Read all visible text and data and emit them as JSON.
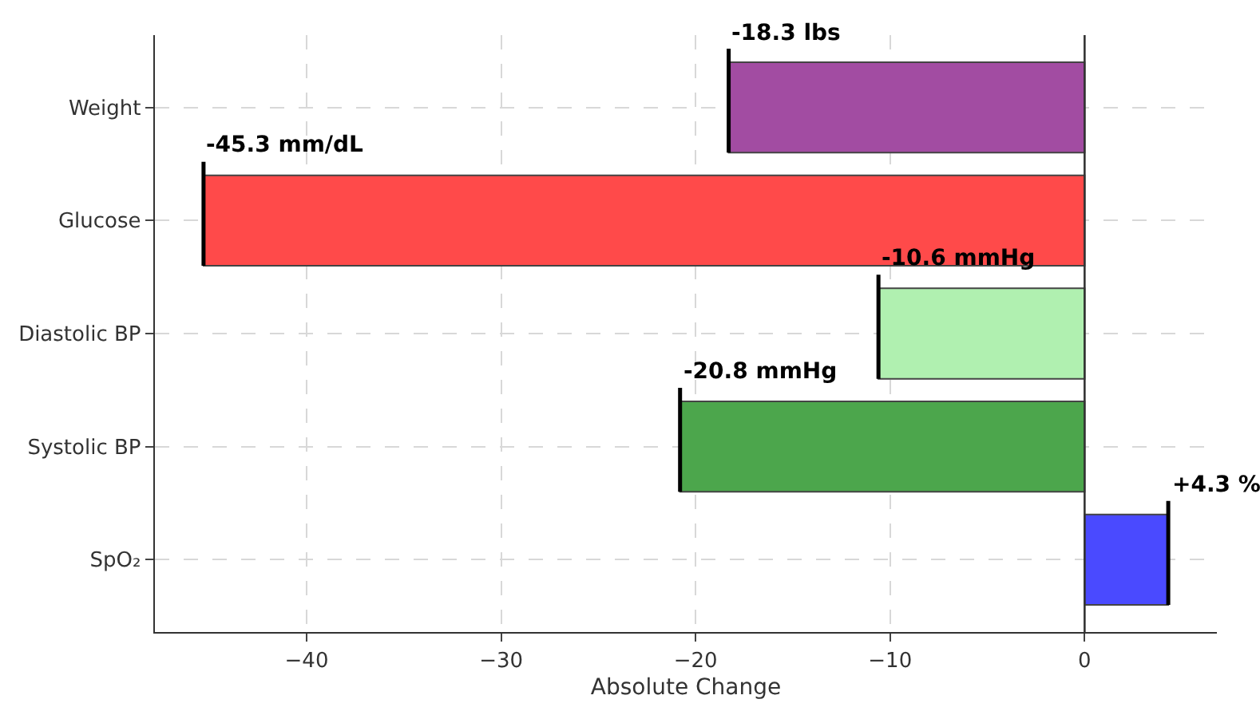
{
  "chart_data": {
    "type": "bar",
    "orientation": "horizontal",
    "xlabel": "Absolute Change",
    "categories": [
      "Weight",
      "Glucose",
      "Diastolic BP",
      "Systolic BP",
      "SpO₂"
    ],
    "values": [
      -18.3,
      -45.3,
      -10.6,
      -20.8,
      4.3
    ],
    "colors": [
      "#a24ca2",
      "#ff4a4a",
      "#b0f0b0",
      "#4ca64c",
      "#4a4aff"
    ],
    "value_labels": [
      "-18.3 lbs",
      "-45.3 mm/dL",
      "-10.6 mmHg",
      "-20.8 mmHg",
      "+4.3 %"
    ],
    "xlim": [
      -47.8,
      6.8
    ],
    "xticks": [
      {
        "value": -40,
        "label": "−40"
      },
      {
        "value": -30,
        "label": "−30"
      },
      {
        "value": -20,
        "label": "−20"
      },
      {
        "value": -10,
        "label": "−10"
      },
      0
    ],
    "ref_lines": [
      {
        "axis": "x",
        "value": 0,
        "color": "#333333"
      }
    ],
    "grid": true
  }
}
